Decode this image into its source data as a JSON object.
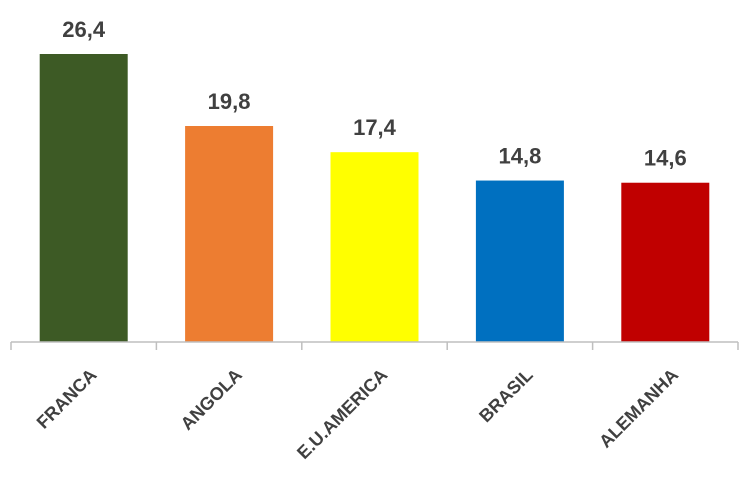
{
  "chart_data": {
    "type": "bar",
    "categories": [
      "FRANCA",
      "ANGOLA",
      "E.U.AMERICA",
      "BRASIL",
      "ALEMANHA"
    ],
    "values": [
      26.4,
      19.8,
      17.4,
      14.8,
      14.6
    ],
    "value_labels": [
      "26,4",
      "19,8",
      "17,4",
      "14,8",
      "14,6"
    ],
    "colors": [
      "#3d5a25",
      "#ed7d31",
      "#ffff00",
      "#0070c0",
      "#c00000"
    ],
    "ylim": [
      0,
      26.4
    ],
    "grid": false,
    "legend": "none"
  }
}
